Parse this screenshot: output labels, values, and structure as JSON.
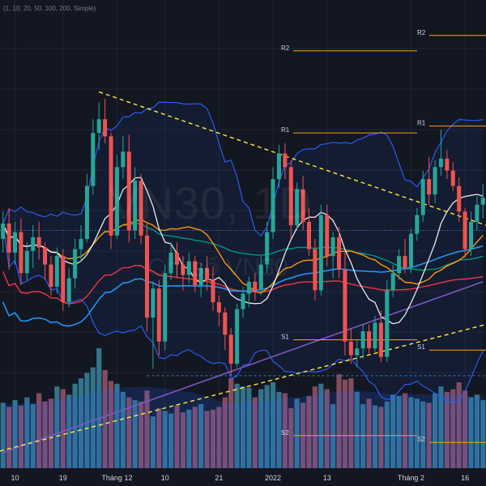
{
  "legend": {
    "ma_settings": "(1, 10, 20, 50, 100, 200, Simple)"
  },
  "watermark": {
    "symbol": "VN30, 1D",
    "description": "Chỉ số VN30"
  },
  "colors": {
    "background": "#131722",
    "grid": "#1f2433",
    "candle_up": "#26a69a",
    "candle_down": "#ef5350",
    "bollinger": "#2962ff",
    "ma10": "#ffffff",
    "ma20": "#ff9800",
    "ma50": "#009688",
    "ma100": "#f23645",
    "ma150": "#2196f3",
    "ma200": "#7e57c2",
    "pivot": "#f7a21b",
    "trendline": "#ffeb3b",
    "volume_up": "#3c8ba6",
    "volume_down": "#a35a6d"
  },
  "chart_data": {
    "type": "candlestick",
    "price_range": [
      1385,
      1655
    ],
    "x_axis": {
      "labels": [
        "10",
        "19",
        "Tháng 12",
        "10",
        "21",
        "2022",
        "13",
        "Tháng 2",
        "16"
      ]
    },
    "candles": [
      [
        1520,
        1536,
        1512,
        1529
      ],
      [
        1529,
        1538,
        1502,
        1512
      ],
      [
        1512,
        1530,
        1505,
        1524
      ],
      [
        1524,
        1532,
        1493,
        1500
      ],
      [
        1500,
        1518,
        1496,
        1513
      ],
      [
        1513,
        1528,
        1503,
        1521
      ],
      [
        1521,
        1530,
        1508,
        1515
      ],
      [
        1515,
        1518,
        1496,
        1505
      ],
      [
        1505,
        1510,
        1487,
        1492
      ],
      [
        1492,
        1515,
        1488,
        1510
      ],
      [
        1510,
        1514,
        1478,
        1483
      ],
      [
        1483,
        1503,
        1480,
        1497
      ],
      [
        1497,
        1520,
        1491,
        1514
      ],
      [
        1514,
        1528,
        1507,
        1520
      ],
      [
        1520,
        1558,
        1518,
        1551
      ],
      [
        1551,
        1590,
        1546,
        1582
      ],
      [
        1582,
        1600,
        1572,
        1590
      ],
      [
        1590,
        1602,
        1576,
        1580
      ],
      [
        1580,
        1582,
        1514,
        1522
      ],
      [
        1522,
        1569,
        1520,
        1562
      ],
      [
        1562,
        1580,
        1555,
        1571
      ],
      [
        1571,
        1581,
        1518,
        1525
      ],
      [
        1525,
        1562,
        1520,
        1554
      ],
      [
        1554,
        1558,
        1517,
        1522
      ],
      [
        1522,
        1530,
        1466,
        1474
      ],
      [
        1474,
        1495,
        1444,
        1491
      ],
      [
        1491,
        1496,
        1452,
        1460
      ],
      [
        1460,
        1505,
        1455,
        1500
      ],
      [
        1500,
        1518,
        1496,
        1512
      ],
      [
        1512,
        1518,
        1497,
        1505
      ],
      [
        1505,
        1510,
        1490,
        1499
      ],
      [
        1499,
        1512,
        1494,
        1507
      ],
      [
        1507,
        1510,
        1489,
        1493
      ],
      [
        1493,
        1506,
        1486,
        1503
      ],
      [
        1503,
        1510,
        1490,
        1496
      ],
      [
        1496,
        1504,
        1478,
        1483
      ],
      [
        1483,
        1487,
        1469,
        1477
      ],
      [
        1477,
        1480,
        1455,
        1464
      ],
      [
        1464,
        1468,
        1440,
        1447
      ],
      [
        1447,
        1482,
        1445,
        1479
      ],
      [
        1479,
        1492,
        1474,
        1488
      ],
      [
        1488,
        1498,
        1480,
        1495
      ],
      [
        1495,
        1500,
        1484,
        1490
      ],
      [
        1490,
        1510,
        1487,
        1505
      ],
      [
        1505,
        1530,
        1500,
        1524
      ],
      [
        1524,
        1562,
        1520,
        1555
      ],
      [
        1555,
        1575,
        1550,
        1570
      ],
      [
        1570,
        1576,
        1555,
        1562
      ],
      [
        1562,
        1566,
        1520,
        1528
      ],
      [
        1528,
        1553,
        1525,
        1549
      ],
      [
        1549,
        1557,
        1525,
        1530
      ],
      [
        1530,
        1538,
        1510,
        1514
      ],
      [
        1514,
        1520,
        1484,
        1490
      ],
      [
        1490,
        1540,
        1487,
        1534
      ],
      [
        1534,
        1540,
        1504,
        1510
      ],
      [
        1510,
        1524,
        1497,
        1521
      ],
      [
        1521,
        1527,
        1497,
        1502
      ],
      [
        1502,
        1512,
        1452,
        1460
      ],
      [
        1460,
        1468,
        1447,
        1452
      ],
      [
        1452,
        1461,
        1445,
        1456
      ],
      [
        1456,
        1470,
        1450,
        1466
      ],
      [
        1466,
        1470,
        1453,
        1456
      ],
      [
        1456,
        1475,
        1454,
        1471
      ],
      [
        1471,
        1478,
        1448,
        1451
      ],
      [
        1451,
        1496,
        1448,
        1490
      ],
      [
        1490,
        1505,
        1486,
        1500
      ],
      [
        1500,
        1514,
        1496,
        1510
      ],
      [
        1510,
        1520,
        1500,
        1503
      ],
      [
        1503,
        1526,
        1500,
        1523
      ],
      [
        1523,
        1538,
        1519,
        1534
      ],
      [
        1534,
        1560,
        1530,
        1555
      ],
      [
        1555,
        1568,
        1540,
        1546
      ],
      [
        1546,
        1566,
        1541,
        1562
      ],
      [
        1562,
        1584,
        1557,
        1567
      ],
      [
        1567,
        1572,
        1555,
        1560
      ],
      [
        1560,
        1565,
        1548,
        1551
      ],
      [
        1551,
        1556,
        1530,
        1536
      ],
      [
        1536,
        1538,
        1509,
        1514
      ],
      [
        1514,
        1536,
        1510,
        1530
      ],
      [
        1530,
        1545,
        1525,
        1540
      ],
      [
        1540,
        1552,
        1532,
        1544
      ]
    ],
    "volume": [
      48,
      45,
      50,
      46,
      52,
      47,
      55,
      49,
      51,
      60,
      58,
      54,
      62,
      66,
      70,
      74,
      88,
      72,
      64,
      62,
      56,
      52,
      50,
      49,
      57,
      38,
      44,
      42,
      40,
      46,
      41,
      43,
      45,
      47,
      42,
      43,
      45,
      52,
      66,
      62,
      60,
      59,
      52,
      58,
      61,
      63,
      56,
      55,
      44,
      51,
      48,
      53,
      60,
      62,
      58,
      47,
      69,
      65,
      66,
      56,
      47,
      51,
      46,
      45,
      49,
      54,
      53,
      55,
      52,
      51,
      49,
      48,
      55,
      60,
      56,
      58,
      63,
      57,
      52,
      54,
      50
    ]
  },
  "pivots": [
    {
      "label": "R2",
      "value": 1630
    },
    {
      "label": "R1",
      "value": 1582
    },
    {
      "label": "S1",
      "value": 1461
    },
    {
      "label": "S2",
      "value": 1405
    },
    {
      "label": "R2",
      "value": 1639
    },
    {
      "label": "R1",
      "value": 1586
    },
    {
      "label": "S1",
      "value": 1455
    },
    {
      "label": "S2",
      "value": 1401
    }
  ],
  "reference_lines": {
    "dotted_blue": 1525,
    "dashed_blue": 1440
  }
}
